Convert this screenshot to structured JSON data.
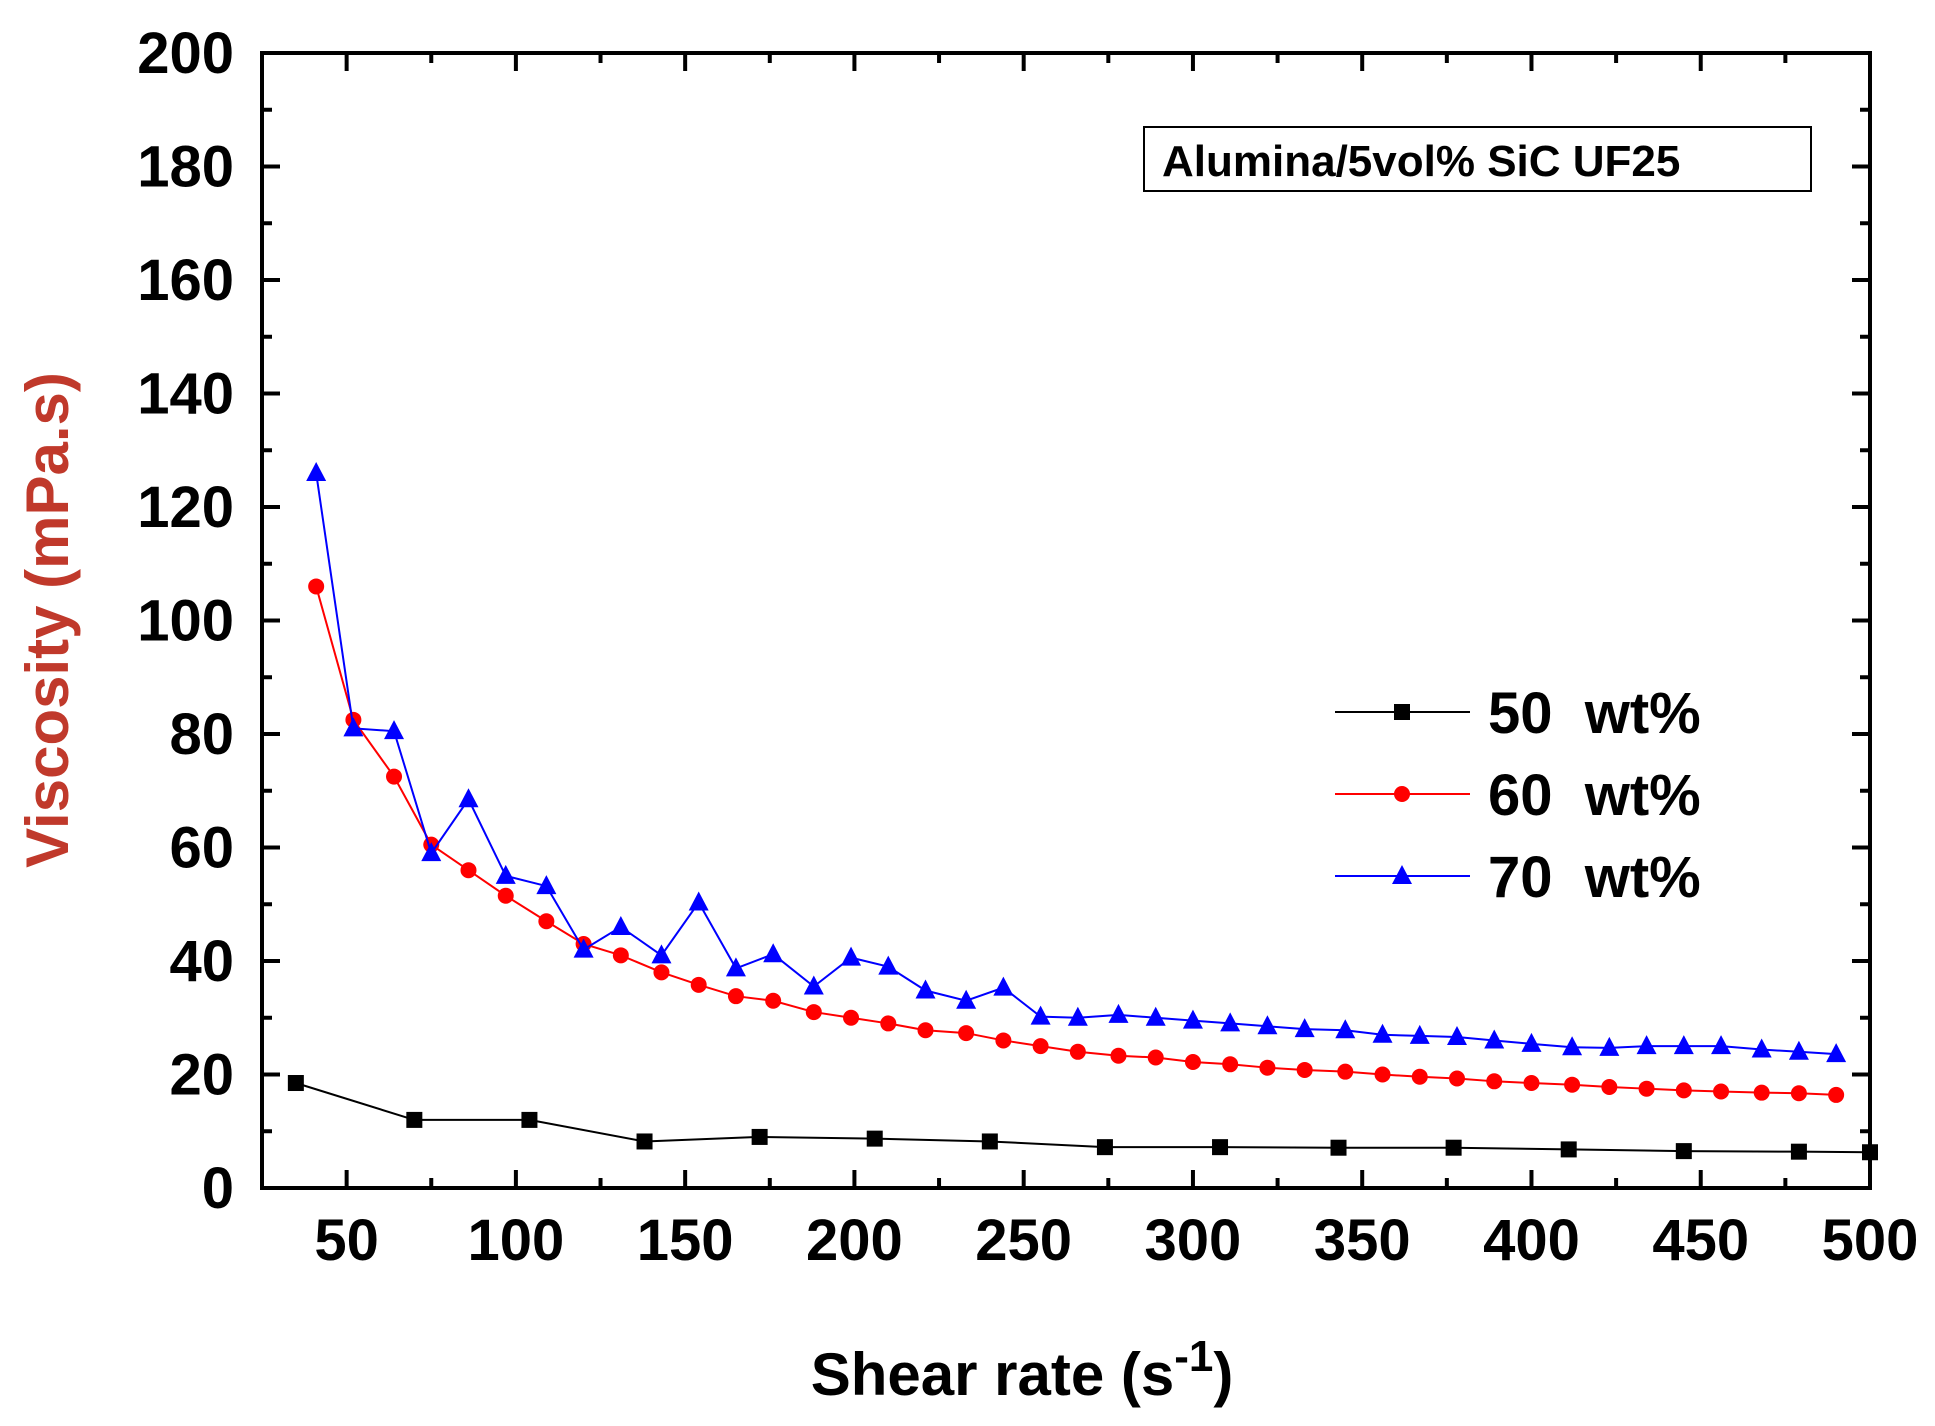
{
  "chart_data": {
    "type": "line",
    "title": "",
    "xlabel": "Shear rate (s",
    "xlabel_sup": "-1",
    "xlabel_close": ")",
    "ylabel": "Viscosity (mPa.s)",
    "xlim": [
      25,
      500
    ],
    "ylim": [
      0,
      200
    ],
    "xticks": [
      50,
      100,
      150,
      200,
      250,
      300,
      350,
      400,
      450,
      500
    ],
    "yticks": [
      0,
      20,
      40,
      60,
      80,
      100,
      120,
      140,
      160,
      180,
      200
    ],
    "annotation": "Alumina/5vol% SiC UF25",
    "legend_position": "center-right",
    "series": [
      {
        "name": "50  wt%",
        "color": "#000000",
        "marker": "square",
        "x": [
          35,
          70,
          104,
          138,
          172,
          206,
          240,
          274,
          308,
          343,
          377,
          411,
          445,
          479,
          500
        ],
        "y": [
          18.5,
          12,
          12,
          8.2,
          9,
          8.7,
          8.2,
          7.2,
          7.2,
          7.1,
          7.1,
          6.8,
          6.5,
          6.4,
          6.3
        ]
      },
      {
        "name": "60  wt%",
        "color": "#ff0000",
        "marker": "circle",
        "x": [
          41,
          52,
          64,
          75,
          86,
          97,
          109,
          120,
          131,
          143,
          154,
          165,
          176,
          188,
          199,
          210,
          221,
          233,
          244,
          255,
          266,
          278,
          289,
          300,
          311,
          322,
          333,
          345,
          356,
          367,
          378,
          389,
          400,
          412,
          423,
          434,
          445,
          456,
          468,
          479,
          490
        ],
        "y": [
          106,
          82.5,
          72.5,
          60.5,
          56,
          51.5,
          47,
          43,
          41,
          38,
          35.8,
          33.8,
          33,
          31,
          30,
          29,
          27.8,
          27.3,
          26,
          25,
          24,
          23.3,
          23,
          22.2,
          21.8,
          21.2,
          20.8,
          20.5,
          20,
          19.6,
          19.3,
          18.8,
          18.5,
          18.2,
          17.8,
          17.5,
          17.2,
          17,
          16.8,
          16.7,
          16.4
        ]
      },
      {
        "name": "70  wt%",
        "color": "#0000ff",
        "marker": "triangle",
        "x": [
          41,
          52,
          64,
          75,
          86,
          97,
          109,
          120,
          131,
          143,
          154,
          165,
          176,
          188,
          199,
          210,
          221,
          233,
          244,
          255,
          266,
          278,
          289,
          300,
          311,
          322,
          333,
          345,
          356,
          367,
          378,
          389,
          400,
          412,
          423,
          434,
          445,
          456,
          468,
          479,
          490
        ],
        "y": [
          126,
          81,
          80.5,
          59,
          68.5,
          55,
          53.2,
          42,
          46,
          41,
          50.3,
          38.7,
          41.2,
          35.5,
          40.6,
          39,
          34.8,
          33,
          35.3,
          30.2,
          30,
          30.5,
          30,
          29.5,
          29,
          28.5,
          28,
          27.8,
          27,
          26.8,
          26.6,
          26,
          25.4,
          24.8,
          24.7,
          25,
          25,
          25,
          24.4,
          24,
          23.6
        ]
      }
    ]
  }
}
